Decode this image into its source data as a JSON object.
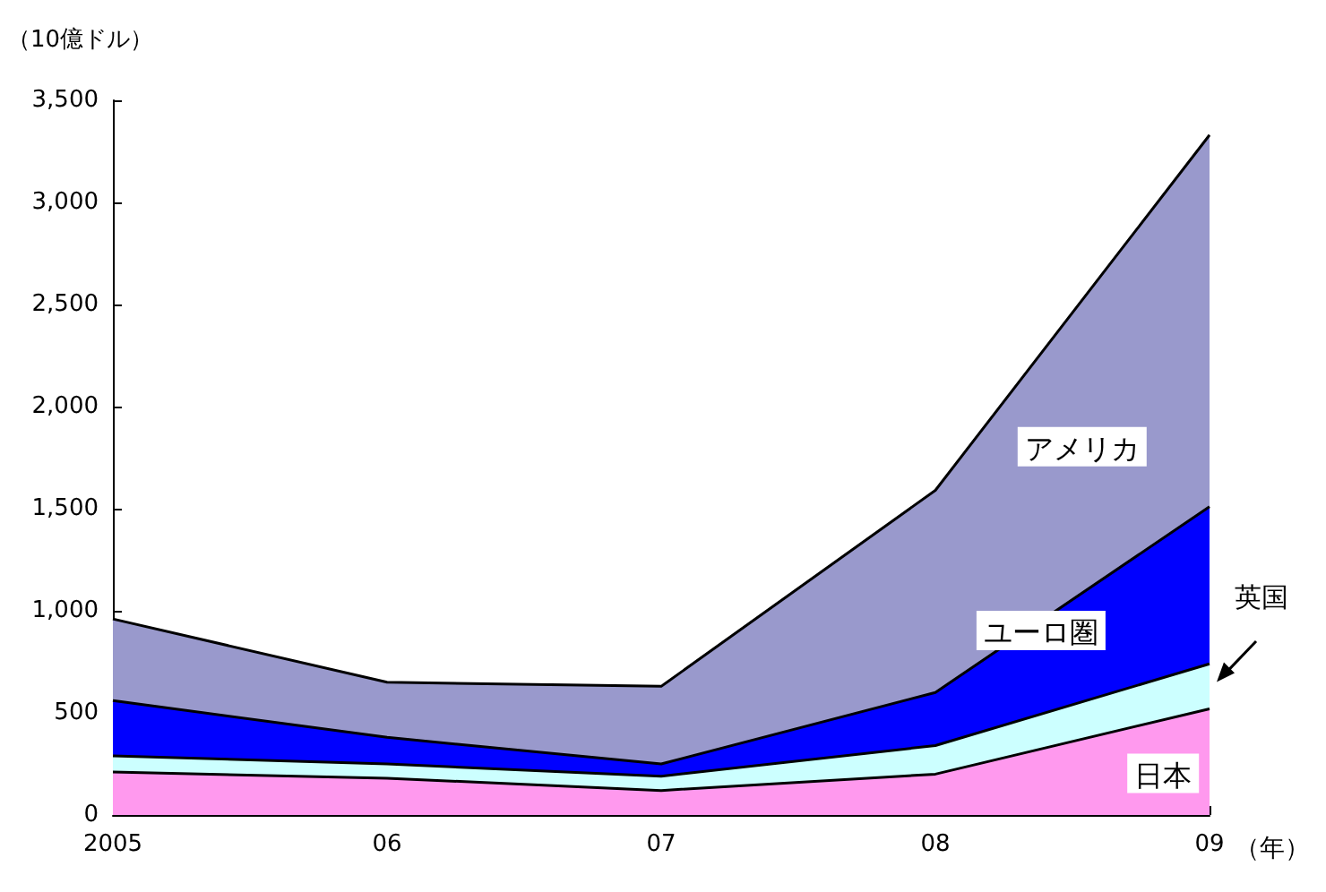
{
  "chart_data": {
    "type": "area",
    "stacked": true,
    "ylabel": "（10億ドル）",
    "xlabel": "（年）",
    "categories": [
      "2005",
      "06",
      "07",
      "08",
      "09"
    ],
    "series": [
      {
        "name": "日本",
        "color": "#ff99ee",
        "values": [
          210,
          180,
          120,
          200,
          520
        ]
      },
      {
        "name": "英国",
        "color": "#ccffff",
        "values": [
          80,
          70,
          70,
          140,
          220
        ]
      },
      {
        "name": "ユーロ圏",
        "color": "#0000ff",
        "values": [
          270,
          130,
          60,
          260,
          770
        ]
      },
      {
        "name": "アメリカ",
        "color": "#9999cc",
        "values": [
          400,
          270,
          380,
          990,
          1820
        ]
      }
    ],
    "ylim": [
      0,
      3500
    ],
    "yticks": [
      {
        "value": 0,
        "label": "0"
      },
      {
        "value": 500,
        "label": "500"
      },
      {
        "value": 1000,
        "label": "1,000"
      },
      {
        "value": 1500,
        "label": "1,500"
      },
      {
        "value": 2000,
        "label": "2,000"
      },
      {
        "value": 2500,
        "label": "2,500"
      },
      {
        "value": 3000,
        "label": "3,000"
      },
      {
        "value": 3500,
        "label": "3,500"
      }
    ],
    "grid": false,
    "legend": false
  }
}
